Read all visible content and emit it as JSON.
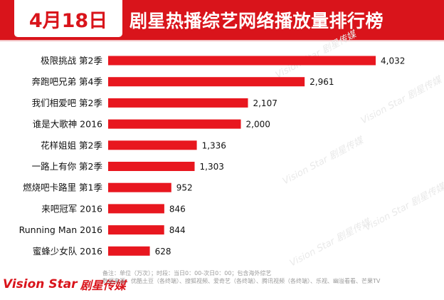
{
  "header": {
    "date": "4月18日",
    "title": "剧星热播综艺网络播放量排行榜"
  },
  "chart_data": {
    "type": "bar",
    "orientation": "horizontal",
    "title": "剧星热播综艺网络播放量排行榜",
    "xlabel": "",
    "ylabel": "",
    "unit": "万次",
    "xlim": [
      0,
      4500
    ],
    "grid": false,
    "categories": [
      "极限挑战 第2季",
      "奔跑吧兄弟 第4季",
      "我们相爱吧 第2季",
      "谁是大歌神 2016",
      "花样姐姐 第2季",
      "一路上有你 第2季",
      "燃烧吧卡路里 第1季",
      "来吧冠军 2016",
      "Running Man 2016",
      "蜜蜂少女队 2016"
    ],
    "values": [
      4032,
      2961,
      2107,
      2000,
      1336,
      1303,
      952,
      846,
      844,
      628
    ],
    "value_labels": [
      "4,032",
      "2,961",
      "2,107",
      "2,000",
      "1,336",
      "1,303",
      "952",
      "846",
      "844",
      "628"
    ],
    "bar_color": "#e8171f"
  },
  "footer": {
    "logo_text": "Vision Star",
    "logo_text_cn": "剧星传媒",
    "note_line1": "备注：单位（万次）；时段：当日0：00-次日0：00；包含海外综艺",
    "note_line2": "数据来源：优酷土豆（各终端）、搜狐视频、爱奇艺（各终端）、腾讯视频（各终端）、乐视、幽溢看看、芒果TV"
  },
  "watermark": {
    "text": "Vision Star 剧星传媒"
  }
}
